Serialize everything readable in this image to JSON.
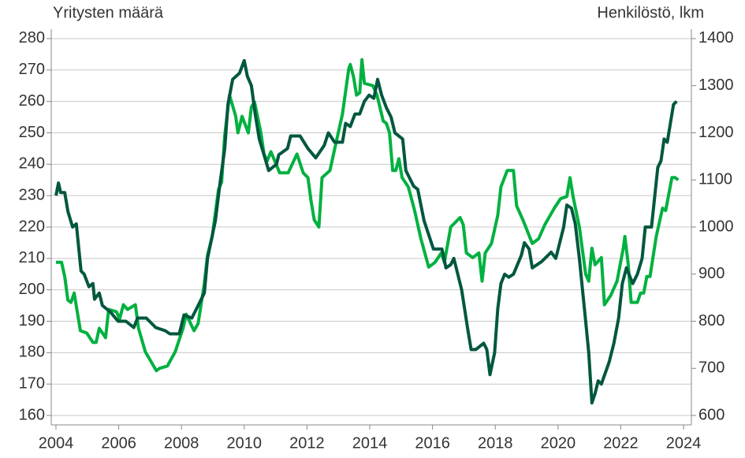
{
  "chart_data": {
    "type": "line",
    "y_label": "Yritysten määrä",
    "y2_label": "Henkilöstö, lkm",
    "xlim": [
      2003.85,
      2024.25
    ],
    "xticks": [
      2004,
      2006,
      2008,
      2010,
      2012,
      2014,
      2016,
      2018,
      2020,
      2022,
      2024
    ],
    "ylim": [
      157,
      283
    ],
    "yticks": [
      160,
      170,
      180,
      190,
      200,
      210,
      220,
      230,
      240,
      250,
      260,
      270,
      280
    ],
    "y2lim": [
      580,
      1420
    ],
    "y2ticks": [
      600,
      700,
      800,
      900,
      1000,
      1100,
      1200,
      1300,
      1400
    ],
    "grid": true,
    "series": [
      {
        "color": "#00573f",
        "axis": "y",
        "x": [
          2004.0,
          2004.08,
          2004.15,
          2004.28,
          2004.38,
          2004.53,
          2004.65,
          2004.8,
          2004.9,
          2005.05,
          2005.18,
          2005.23,
          2005.38,
          2005.48,
          2005.73,
          2005.98,
          2006.23,
          2006.48,
          2006.6,
          2006.88,
          2007.18,
          2007.48,
          2007.63,
          2007.93,
          2008.08,
          2008.33,
          2008.53,
          2008.73,
          2008.83,
          2009.08,
          2009.23,
          2009.38,
          2009.48,
          2009.63,
          2009.85,
          2010.0,
          2010.1,
          2010.23,
          2010.35,
          2010.48,
          2010.63,
          2010.78,
          2011.03,
          2011.1,
          2011.38,
          2011.48,
          2011.78,
          2012.03,
          2012.28,
          2012.55,
          2012.68,
          2012.88,
          2013.13,
          2013.23,
          2013.38,
          2013.53,
          2013.68,
          2013.83,
          2013.98,
          2014.13,
          2014.25,
          2014.38,
          2014.53,
          2014.68,
          2014.8,
          2015.05,
          2015.15,
          2015.4,
          2015.53,
          2015.73,
          2016.03,
          2016.3,
          2016.43,
          2016.58,
          2016.68,
          2016.93,
          2017.13,
          2017.23,
          2017.38,
          2017.63,
          2017.73,
          2017.83,
          2017.98,
          2018.08,
          2018.18,
          2018.3,
          2018.43,
          2018.58,
          2018.83,
          2018.93,
          2019.08,
          2019.18,
          2019.48,
          2019.78,
          2019.93,
          2020.18,
          2020.28,
          2020.43,
          2020.55,
          2020.68,
          2020.88,
          2020.98,
          2021.08,
          2021.18,
          2021.28,
          2021.38,
          2021.63,
          2021.78,
          2021.93,
          2022.05,
          2022.18,
          2022.38,
          2022.53,
          2022.68,
          2022.78,
          2022.98,
          2023.18,
          2023.28,
          2023.38,
          2023.48,
          2023.68,
          2023.78
        ],
        "values": [
          230,
          234,
          231,
          231,
          225,
          220,
          221,
          206,
          205,
          201,
          202,
          197,
          199,
          195,
          193,
          190,
          190,
          188,
          191,
          191,
          188,
          187,
          186,
          186,
          192,
          191,
          195,
          199,
          210,
          222,
          234,
          245,
          259,
          267,
          269,
          273,
          268,
          265,
          256,
          248,
          243,
          238,
          240,
          243,
          245,
          249,
          249,
          245,
          242,
          246,
          250,
          247,
          247,
          253,
          252,
          256,
          256,
          260,
          262,
          261,
          267,
          262,
          258,
          255,
          250,
          248,
          238,
          233,
          232,
          222,
          213,
          213,
          207,
          208,
          210,
          200,
          187,
          181,
          181,
          183,
          181,
          173,
          180,
          194,
          202,
          205,
          204,
          205,
          211,
          215,
          213,
          207,
          209,
          212,
          210,
          220,
          227,
          226,
          221,
          210,
          190,
          180,
          164,
          167,
          171,
          170,
          177,
          183,
          191,
          202,
          207,
          202,
          205,
          210,
          220,
          220,
          239,
          241,
          248,
          247,
          259,
          260
        ]
      },
      {
        "color": "#00b140",
        "axis": "y2",
        "x": [
          2004.0,
          2004.18,
          2004.28,
          2004.38,
          2004.48,
          2004.58,
          2004.68,
          2004.78,
          2004.98,
          2005.18,
          2005.28,
          2005.38,
          2005.58,
          2005.68,
          2005.93,
          2006.03,
          2006.15,
          2006.28,
          2006.53,
          2006.63,
          2006.85,
          2006.98,
          2007.2,
          2007.3,
          2007.55,
          2007.8,
          2008.05,
          2008.15,
          2008.4,
          2008.53,
          2008.73,
          2008.83,
          2008.98,
          2009.18,
          2009.28,
          2009.38,
          2009.53,
          2009.73,
          2009.8,
          2009.93,
          2010.13,
          2010.23,
          2010.33,
          2010.53,
          2010.63,
          2010.73,
          2010.85,
          2011.13,
          2011.4,
          2011.68,
          2011.88,
          2012.03,
          2012.13,
          2012.23,
          2012.38,
          2012.48,
          2012.73,
          2012.93,
          2013.13,
          2013.33,
          2013.38,
          2013.48,
          2013.58,
          2013.68,
          2013.75,
          2013.83,
          2014.1,
          2014.23,
          2014.43,
          2014.53,
          2014.63,
          2014.73,
          2014.83,
          2014.93,
          2015.03,
          2015.23,
          2015.43,
          2015.63,
          2015.88,
          2016.08,
          2016.28,
          2016.38,
          2016.58,
          2016.88,
          2016.98,
          2017.08,
          2017.28,
          2017.48,
          2017.58,
          2017.68,
          2017.88,
          2018.08,
          2018.18,
          2018.38,
          2018.58,
          2018.68,
          2018.88,
          2019.18,
          2019.38,
          2019.58,
          2019.88,
          2020.08,
          2020.28,
          2020.38,
          2020.48,
          2020.68,
          2020.88,
          2020.98,
          2021.08,
          2021.18,
          2021.38,
          2021.48,
          2021.68,
          2021.88,
          2022.08,
          2022.13,
          2022.23,
          2022.33,
          2022.53,
          2022.63,
          2022.73,
          2022.83,
          2022.93,
          2023.13,
          2023.33,
          2023.43,
          2023.63,
          2023.73,
          2023.83
        ],
        "values": [
          925,
          925,
          895,
          845,
          840,
          860,
          820,
          780,
          775,
          755,
          755,
          785,
          765,
          825,
          820,
          805,
          835,
          825,
          835,
          785,
          735,
          720,
          695,
          700,
          705,
          735,
          785,
          815,
          780,
          795,
          880,
          940,
          980,
          1080,
          1095,
          1195,
          1280,
          1235,
          1200,
          1235,
          1200,
          1255,
          1265,
          1200,
          1155,
          1140,
          1160,
          1115,
          1115,
          1155,
          1115,
          1105,
          1055,
          1015,
          1000,
          1105,
          1120,
          1180,
          1240,
          1335,
          1345,
          1320,
          1280,
          1285,
          1355,
          1305,
          1300,
          1280,
          1225,
          1220,
          1200,
          1120,
          1120,
          1145,
          1105,
          1085,
          1035,
          975,
          915,
          925,
          945,
          925,
          1000,
          1020,
          1005,
          945,
          935,
          945,
          885,
          945,
          965,
          1025,
          1085,
          1120,
          1120,
          1045,
          1015,
          965,
          975,
          1005,
          1040,
          1060,
          1065,
          1105,
          1065,
          1000,
          900,
          885,
          955,
          920,
          935,
          835,
          855,
          885,
          955,
          980,
          925,
          840,
          840,
          860,
          860,
          895,
          895,
          980,
          1040,
          1035,
          1105,
          1105,
          1100
        ]
      }
    ]
  }
}
